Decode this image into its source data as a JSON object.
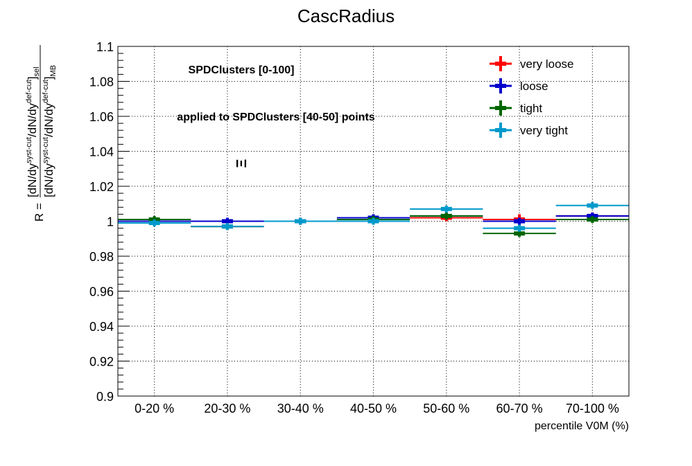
{
  "chart_data": {
    "type": "scatter",
    "title": "CascRadius",
    "xlabel": "percentile V0M (%)",
    "ylabel": {
      "prefix": "R = ",
      "numerator": "[dN/dy^{syst-cut}/dN/dy^{def-cut}]_{sel}",
      "denominator": "[dN/dy^{syst-cut}/dN/dy^{def-cut}]_{MB}",
      "num_parts": [
        "[dN/dy",
        "syst-cut",
        "/dN/dy",
        "def-cut",
        "]",
        "sel"
      ],
      "den_parts": [
        "[dN/dy",
        "syst-cut",
        "/dN/dy",
        "def-cut",
        "]",
        "MB"
      ]
    },
    "categories": [
      "0-20 %",
      "20-30 %",
      "30-40 %",
      "40-50 %",
      "50-60 %",
      "60-70 %",
      "70-100 %"
    ],
    "ylim": [
      0.9,
      1.1
    ],
    "yticks": [
      "0.9",
      "0.92",
      "0.94",
      "0.96",
      "0.98",
      "1",
      "1.02",
      "1.04",
      "1.06",
      "1.08",
      "1.1"
    ],
    "grid": true,
    "legend_position": "top-right",
    "annotations": [
      "SPDClusters [0-100]",
      "applied to SPDClusters [40-50] points",
      "Ξ"
    ],
    "series": [
      {
        "name": "very loose",
        "color": "#ff0000",
        "values": [
          1.0,
          0.997,
          1.0,
          1.001,
          1.002,
          1.001,
          1.003
        ],
        "errors": [
          0.002,
          0.002,
          0.002,
          0.002,
          0.002,
          0.003,
          0.002
        ]
      },
      {
        "name": "loose",
        "color": "#0000cc",
        "values": [
          1.0,
          1.0,
          1.0,
          1.002,
          1.003,
          1.0,
          1.003
        ],
        "errors": [
          0.002,
          0.002,
          0.002,
          0.002,
          0.002,
          0.002,
          0.002
        ]
      },
      {
        "name": "tight",
        "color": "#006600",
        "values": [
          1.001,
          0.997,
          1.0,
          1.001,
          1.003,
          0.993,
          1.001
        ],
        "errors": [
          0.002,
          0.002,
          0.002,
          0.002,
          0.002,
          0.002,
          0.002
        ]
      },
      {
        "name": "very tight",
        "color": "#0099cc",
        "values": [
          0.999,
          0.997,
          1.0,
          1.0,
          1.007,
          0.996,
          1.009
        ],
        "errors": [
          0.002,
          0.002,
          0.002,
          0.002,
          0.002,
          0.002,
          0.002
        ]
      }
    ]
  }
}
